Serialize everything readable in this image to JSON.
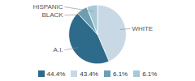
{
  "chart_data": {
    "type": "pie",
    "categories": [
      "WHITE",
      "A.I.",
      "BLACK",
      "HISPANIC"
    ],
    "values": [
      43.4,
      44.4,
      6.1,
      6.1
    ],
    "colors": [
      "#c8d8e4",
      "#2e6a8a",
      "#6a9fb5",
      "#a8c8d8"
    ],
    "legend": "bottom",
    "legend_entries": [
      {
        "name": "44.4%",
        "color": "#2e6a8a"
      },
      {
        "name": "43.4%",
        "color": "#c8d8e4"
      },
      {
        "name": "6.1%",
        "color": "#6a9fb5"
      },
      {
        "name": "6.1%",
        "color": "#a8c8d8"
      }
    ]
  }
}
